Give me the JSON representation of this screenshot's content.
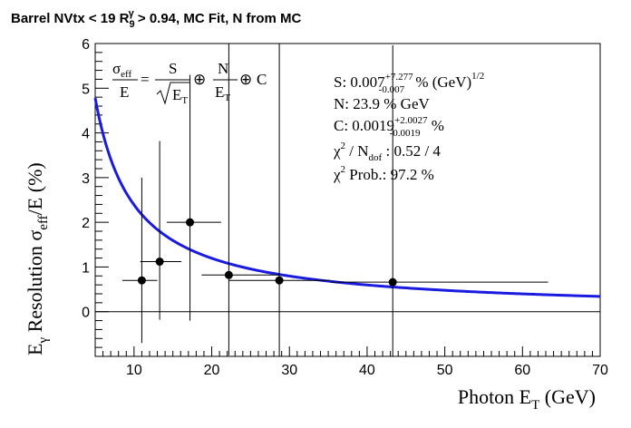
{
  "chart_data": {
    "type": "scatter",
    "title": {
      "prefix": "Barrel NVtx < 19 R",
      "sub": "9",
      "sup": "γ",
      "suffix": " > 0.94, MC Fit, N from MC"
    },
    "xlabel": {
      "main": "Photon E",
      "sub": "T",
      "unit": " (GeV)"
    },
    "ylabel": {
      "e": "E",
      "e_sub": "γ",
      "mid": " Resolution σ",
      "sig_sub": "eff",
      "tail": "/E (%)"
    },
    "xlim": [
      5,
      70
    ],
    "ylim": [
      -1,
      6
    ],
    "x_ticks": [
      10,
      20,
      30,
      40,
      50,
      60,
      70
    ],
    "y_ticks": [
      0,
      1,
      2,
      3,
      4,
      5,
      6
    ],
    "points": [
      {
        "x": 11.0,
        "y": 0.7,
        "xerr_lo": 2.5,
        "xerr_hi": 2.0,
        "yerr_lo": 1.4,
        "yerr_hi": 2.3
      },
      {
        "x": 13.3,
        "y": 1.12,
        "xerr_lo": 2.5,
        "xerr_hi": 2.8,
        "yerr_lo": 1.3,
        "yerr_hi": 2.7
      },
      {
        "x": 17.2,
        "y": 2.0,
        "xerr_lo": 3.0,
        "xerr_hi": 4.0,
        "yerr_lo": 2.2,
        "yerr_hi": 3.3
      },
      {
        "x": 22.2,
        "y": 0.82,
        "xerr_lo": 3.5,
        "xerr_hi": 6.5,
        "yerr_lo": 1.8,
        "yerr_hi": 5.2
      },
      {
        "x": 28.7,
        "y": 0.7,
        "xerr_lo": 6.5,
        "xerr_hi": 6.5,
        "yerr_lo": 1.7,
        "yerr_hi": 5.3
      },
      {
        "x": 43.3,
        "y": 0.66,
        "xerr_lo": 8.0,
        "xerr_hi": 20.0,
        "yerr_lo": 1.7,
        "yerr_hi": 5.3
      }
    ],
    "fit": {
      "S": 0.007,
      "N": 23.9,
      "C": 0.0019,
      "color": "#1a1ae0"
    },
    "formula": {
      "lhs_num": "σ",
      "lhs_num_sub": "eff",
      "lhs_den": "E",
      "t1_num": "S",
      "t1_den": "E",
      "t1_den_sub": "T",
      "oplus": "⊕",
      "t2_num": "N",
      "t2_den": "E",
      "t2_den_sub": "T",
      "t3": "C"
    },
    "stats": {
      "s_label": "S:  0.007",
      "s_up": "+7.277",
      "s_dn": "-0.007",
      "s_unit": "  % (GeV)",
      "s_unit_sup": "1/2",
      "n_line": "N:  23.9 % GeV",
      "c_label": "C:  0.0019",
      "c_up": "+2.0027",
      "c_dn": "-0.0019",
      "c_unit": "  %",
      "chi_sym": "χ",
      "chi_sup": "2",
      "chi_mid": " / N",
      "chi_sub": "dof",
      "chi_val": " : 0.52 / 4",
      "prob_sym": "χ",
      "prob_sup": "2",
      "prob_val": " Prob.: 97.2 %"
    }
  }
}
